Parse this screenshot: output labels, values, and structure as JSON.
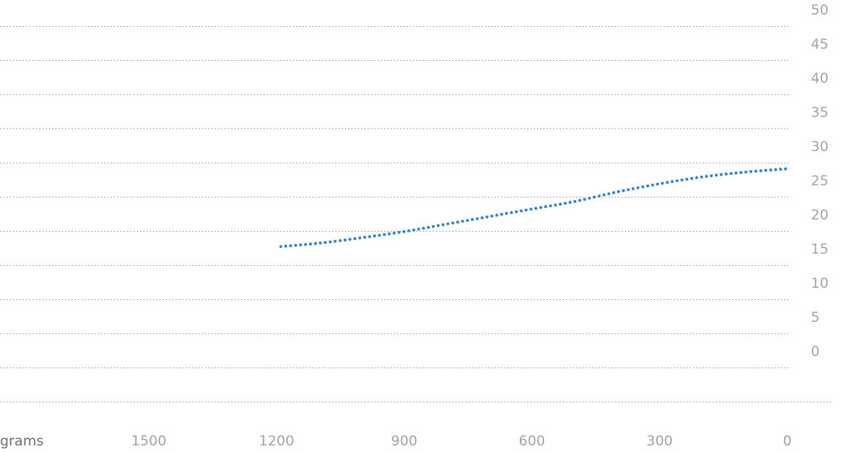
{
  "chart_data": {
    "type": "line",
    "title": "",
    "xlabel": "grams",
    "ylabel": "",
    "xlim": [
      1800,
      0
    ],
    "ylim": [
      -5,
      50
    ],
    "x_ticks": [
      1500,
      1200,
      900,
      600,
      300,
      0
    ],
    "y_ticks": [
      50,
      45,
      40,
      35,
      30,
      25,
      20,
      15,
      10,
      5,
      0
    ],
    "grid": true,
    "series": [
      {
        "color": "#2f86c8",
        "x": [
          1190,
          1100,
          1000,
          900,
          800,
          700,
          600,
          500,
          400,
          300,
          200,
          100,
          0
        ],
        "y": [
          17.7,
          18.2,
          19.0,
          19.9,
          21.0,
          22.1,
          23.2,
          24.3,
          25.7,
          26.9,
          27.9,
          28.6,
          29.1
        ]
      }
    ]
  }
}
